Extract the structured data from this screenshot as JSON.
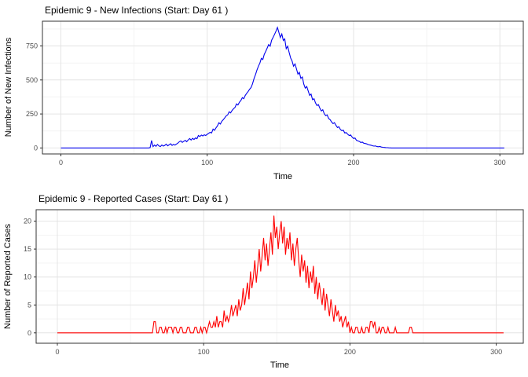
{
  "page": {
    "background": "#ffffff"
  },
  "theme": {
    "grid_major": "#e4e4e4",
    "grid_minor": "#f3f3f3",
    "panel_border": "#333333",
    "tick_color": "#333333",
    "tick_label_color": "#4d4d4d",
    "text_color": "#000000"
  },
  "chart_data": [
    {
      "type": "line",
      "title": "Epidemic 9 - New Infections (Start: Day 61 )",
      "xlabel": "Time",
      "ylabel": "Number of New Infections",
      "line_color": "#0000ee",
      "legend": "none",
      "grid": "on",
      "x_ticks": [
        0,
        100,
        200,
        300
      ],
      "x_minor": [
        50,
        150,
        250
      ],
      "y_ticks": [
        0,
        250,
        500,
        750
      ],
      "y_minor": [
        125,
        375,
        625,
        875
      ],
      "xlim": [
        -12.6,
        316
      ],
      "ylim": [
        -44,
        932
      ],
      "points": [
        [
          0,
          0
        ],
        [
          60,
          0
        ],
        [
          61,
          3
        ],
        [
          62,
          55
        ],
        [
          63,
          10
        ],
        [
          64,
          22
        ],
        [
          65,
          12
        ],
        [
          66,
          26
        ],
        [
          67,
          15
        ],
        [
          68,
          10
        ],
        [
          69,
          22
        ],
        [
          70,
          14
        ],
        [
          71,
          19
        ],
        [
          72,
          28
        ],
        [
          73,
          16
        ],
        [
          74,
          23
        ],
        [
          75,
          31
        ],
        [
          76,
          19
        ],
        [
          77,
          26
        ],
        [
          78,
          21
        ],
        [
          79,
          29
        ],
        [
          80,
          36
        ],
        [
          81,
          46
        ],
        [
          82,
          52
        ],
        [
          83,
          41
        ],
        [
          84,
          49
        ],
        [
          85,
          56
        ],
        [
          86,
          46
        ],
        [
          87,
          59
        ],
        [
          88,
          69
        ],
        [
          89,
          58
        ],
        [
          90,
          71
        ],
        [
          91,
          62
        ],
        [
          92,
          74
        ],
        [
          93,
          68
        ],
        [
          94,
          92
        ],
        [
          95,
          84
        ],
        [
          96,
          95
        ],
        [
          97,
          88
        ],
        [
          98,
          97
        ],
        [
          99,
          92
        ],
        [
          100,
          100
        ],
        [
          101,
          108
        ],
        [
          102,
          115
        ],
        [
          103,
          110
        ],
        [
          104,
          139
        ],
        [
          105,
          130
        ],
        [
          106,
          148
        ],
        [
          107,
          162
        ],
        [
          108,
          185
        ],
        [
          109,
          176
        ],
        [
          110,
          196
        ],
        [
          111,
          208
        ],
        [
          112,
          222
        ],
        [
          113,
          236
        ],
        [
          114,
          243
        ],
        [
          115,
          266
        ],
        [
          116,
          258
        ],
        [
          117,
          276
        ],
        [
          118,
          288
        ],
        [
          119,
          298
        ],
        [
          120,
          324
        ],
        [
          121,
          316
        ],
        [
          122,
          336
        ],
        [
          123,
          348
        ],
        [
          124,
          370
        ],
        [
          125,
          362
        ],
        [
          126,
          386
        ],
        [
          127,
          402
        ],
        [
          128,
          416
        ],
        [
          129,
          432
        ],
        [
          130,
          445
        ],
        [
          131,
          472
        ],
        [
          132,
          510
        ],
        [
          133,
          540
        ],
        [
          134,
          572
        ],
        [
          135,
          601
        ],
        [
          136,
          625
        ],
        [
          137,
          659
        ],
        [
          138,
          650
        ],
        [
          139,
          688
        ],
        [
          140,
          710
        ],
        [
          141,
          735
        ],
        [
          142,
          760
        ],
        [
          143,
          748
        ],
        [
          144,
          792
        ],
        [
          145,
          812
        ],
        [
          146,
          835
        ],
        [
          147,
          858
        ],
        [
          148,
          886
        ],
        [
          149,
          848
        ],
        [
          150,
          812
        ],
        [
          151,
          838
        ],
        [
          152,
          790
        ],
        [
          153,
          802
        ],
        [
          154,
          730
        ],
        [
          155,
          748
        ],
        [
          156,
          702
        ],
        [
          157,
          662
        ],
        [
          158,
          640
        ],
        [
          159,
          601
        ],
        [
          160,
          618
        ],
        [
          161,
          582
        ],
        [
          162,
          543
        ],
        [
          163,
          556
        ],
        [
          164,
          512
        ],
        [
          165,
          522
        ],
        [
          166,
          470
        ],
        [
          167,
          440
        ],
        [
          168,
          452
        ],
        [
          169,
          420
        ],
        [
          170,
          387
        ],
        [
          171,
          396
        ],
        [
          172,
          355
        ],
        [
          173,
          362
        ],
        [
          174,
          332
        ],
        [
          175,
          312
        ],
        [
          176,
          318
        ],
        [
          177,
          292
        ],
        [
          178,
          272
        ],
        [
          179,
          281
        ],
        [
          180,
          251
        ],
        [
          181,
          237
        ],
        [
          182,
          243
        ],
        [
          183,
          216
        ],
        [
          184,
          208
        ],
        [
          185,
          191
        ],
        [
          186,
          179
        ],
        [
          187,
          186
        ],
        [
          188,
          166
        ],
        [
          189,
          150
        ],
        [
          190,
          156
        ],
        [
          191,
          136
        ],
        [
          192,
          127
        ],
        [
          193,
          131
        ],
        [
          194,
          110
        ],
        [
          195,
          113
        ],
        [
          196,
          101
        ],
        [
          197,
          92
        ],
        [
          198,
          96
        ],
        [
          199,
          81
        ],
        [
          200,
          69
        ],
        [
          201,
          73
        ],
        [
          202,
          56
        ],
        [
          203,
          52
        ],
        [
          204,
          48
        ],
        [
          205,
          40
        ],
        [
          206,
          43
        ],
        [
          207,
          35
        ],
        [
          208,
          33
        ],
        [
          209,
          30
        ],
        [
          210,
          25
        ],
        [
          211,
          22
        ],
        [
          212,
          20
        ],
        [
          213,
          16
        ],
        [
          214,
          14
        ],
        [
          215,
          15
        ],
        [
          216,
          10
        ],
        [
          217,
          9
        ],
        [
          218,
          11
        ],
        [
          219,
          7
        ],
        [
          220,
          5
        ],
        [
          221,
          4
        ],
        [
          222,
          3
        ],
        [
          223,
          2
        ],
        [
          224,
          1
        ],
        [
          226,
          0
        ],
        [
          303,
          0
        ]
      ]
    },
    {
      "type": "line",
      "title": "Epidemic 9 - Reported Cases (Start: Day 61 )",
      "xlabel": "Time",
      "ylabel": "Number of Reported Cases",
      "line_color": "#ff0000",
      "legend": "none",
      "grid": "on",
      "x_ticks": [
        0,
        100,
        200,
        300
      ],
      "x_minor": [
        50,
        150,
        250
      ],
      "y_ticks": [
        0,
        5,
        10,
        15,
        20
      ],
      "y_minor": [
        2.5,
        7.5,
        12.5,
        17.5
      ],
      "xlim": [
        -14.5,
        318.5
      ],
      "ylim": [
        -1.85,
        22.05
      ],
      "points": [
        [
          0,
          0
        ],
        [
          65,
          0
        ],
        [
          66,
          2
        ],
        [
          67,
          2
        ],
        [
          68,
          0
        ],
        [
          69,
          0
        ],
        [
          70,
          1
        ],
        [
          71,
          1
        ],
        [
          72,
          0
        ],
        [
          73,
          0
        ],
        [
          74,
          1
        ],
        [
          75,
          0
        ],
        [
          76,
          1
        ],
        [
          77,
          1
        ],
        [
          78,
          1
        ],
        [
          79,
          0
        ],
        [
          80,
          1
        ],
        [
          81,
          1
        ],
        [
          82,
          0
        ],
        [
          83,
          0
        ],
        [
          84,
          1
        ],
        [
          85,
          1
        ],
        [
          86,
          0
        ],
        [
          88,
          0
        ],
        [
          89,
          1
        ],
        [
          90,
          1
        ],
        [
          91,
          0
        ],
        [
          93,
          0
        ],
        [
          94,
          1
        ],
        [
          95,
          1
        ],
        [
          96,
          0
        ],
        [
          97,
          0
        ],
        [
          98,
          1
        ],
        [
          99,
          0
        ],
        [
          100,
          1
        ],
        [
          101,
          1
        ],
        [
          102,
          0
        ],
        [
          103,
          1
        ],
        [
          104,
          2
        ],
        [
          105,
          1
        ],
        [
          106,
          1
        ],
        [
          107,
          2
        ],
        [
          108,
          1
        ],
        [
          109,
          3
        ],
        [
          110,
          1
        ],
        [
          111,
          2
        ],
        [
          112,
          2
        ],
        [
          113,
          1
        ],
        [
          114,
          4
        ],
        [
          115,
          2
        ],
        [
          116,
          3
        ],
        [
          117,
          2
        ],
        [
          118,
          3
        ],
        [
          119,
          5
        ],
        [
          120,
          3
        ],
        [
          121,
          4
        ],
        [
          122,
          5
        ],
        [
          123,
          3
        ],
        [
          124,
          6
        ],
        [
          125,
          4
        ],
        [
          126,
          5
        ],
        [
          127,
          8
        ],
        [
          128,
          5
        ],
        [
          129,
          7
        ],
        [
          130,
          9
        ],
        [
          131,
          6
        ],
        [
          132,
          11
        ],
        [
          133,
          8
        ],
        [
          134,
          10
        ],
        [
          135,
          13
        ],
        [
          136,
          9
        ],
        [
          137,
          12
        ],
        [
          138,
          15
        ],
        [
          139,
          11
        ],
        [
          140,
          14
        ],
        [
          141,
          17
        ],
        [
          142,
          13
        ],
        [
          143,
          16
        ],
        [
          144,
          12
        ],
        [
          145,
          15
        ],
        [
          146,
          18
        ],
        [
          147,
          14
        ],
        [
          148,
          21
        ],
        [
          149,
          17
        ],
        [
          150,
          19
        ],
        [
          151,
          15
        ],
        [
          152,
          18
        ],
        [
          153,
          20
        ],
        [
          154,
          16
        ],
        [
          155,
          19
        ],
        [
          156,
          14
        ],
        [
          157,
          17
        ],
        [
          158,
          15
        ],
        [
          159,
          18
        ],
        [
          160,
          13
        ],
        [
          161,
          16
        ],
        [
          162,
          12
        ],
        [
          163,
          15
        ],
        [
          164,
          17
        ],
        [
          165,
          13
        ],
        [
          166,
          10
        ],
        [
          167,
          14
        ],
        [
          168,
          11
        ],
        [
          169,
          13
        ],
        [
          170,
          9
        ],
        [
          171,
          12
        ],
        [
          172,
          8
        ],
        [
          173,
          11
        ],
        [
          174,
          9
        ],
        [
          175,
          12
        ],
        [
          176,
          7
        ],
        [
          177,
          10
        ],
        [
          178,
          6
        ],
        [
          179,
          9
        ],
        [
          180,
          7
        ],
        [
          181,
          5
        ],
        [
          182,
          8
        ],
        [
          183,
          4
        ],
        [
          184,
          7
        ],
        [
          185,
          5
        ],
        [
          186,
          3
        ],
        [
          187,
          6
        ],
        [
          188,
          4
        ],
        [
          189,
          2
        ],
        [
          190,
          5
        ],
        [
          191,
          3
        ],
        [
          192,
          4
        ],
        [
          193,
          2
        ],
        [
          194,
          3
        ],
        [
          195,
          1
        ],
        [
          196,
          2
        ],
        [
          197,
          3
        ],
        [
          198,
          1
        ],
        [
          199,
          2
        ],
        [
          200,
          0
        ],
        [
          201,
          1
        ],
        [
          202,
          0
        ],
        [
          203,
          0
        ],
        [
          204,
          1
        ],
        [
          205,
          1
        ],
        [
          206,
          0
        ],
        [
          207,
          0
        ],
        [
          208,
          1
        ],
        [
          209,
          0
        ],
        [
          210,
          0
        ],
        [
          211,
          1
        ],
        [
          212,
          1
        ],
        [
          213,
          0
        ],
        [
          214,
          2
        ],
        [
          215,
          2
        ],
        [
          216,
          1
        ],
        [
          217,
          2
        ],
        [
          218,
          0
        ],
        [
          219,
          0
        ],
        [
          220,
          1
        ],
        [
          221,
          0
        ],
        [
          222,
          1
        ],
        [
          223,
          1
        ],
        [
          224,
          0
        ],
        [
          225,
          0
        ],
        [
          226,
          1
        ],
        [
          227,
          0
        ],
        [
          230,
          0
        ],
        [
          231,
          1
        ],
        [
          232,
          0
        ],
        [
          240,
          0
        ],
        [
          241,
          1
        ],
        [
          242,
          1
        ],
        [
          243,
          0
        ],
        [
          305,
          0
        ]
      ]
    }
  ]
}
